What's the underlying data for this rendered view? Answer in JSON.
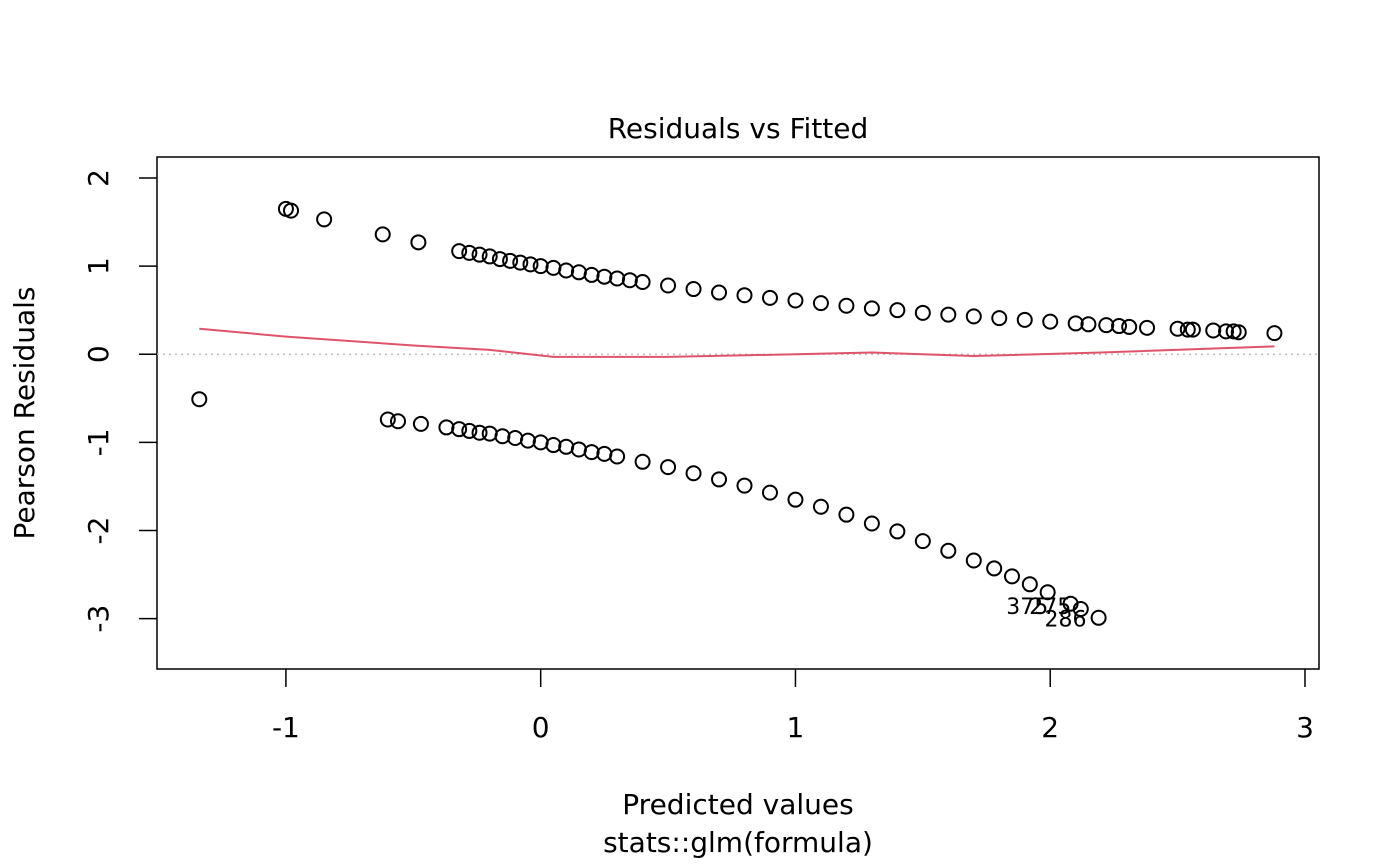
{
  "chart_data": {
    "type": "scatter",
    "title": "Residuals vs Fitted",
    "xlabel": "Predicted values",
    "subtitle": "stats::glm(formula)",
    "ylabel": "Pearson Residuals",
    "xlim": [
      -1.506,
      3.055
    ],
    "ylim": [
      -3.571,
      2.238
    ],
    "xticks": [
      -1,
      0,
      1,
      2,
      3
    ],
    "yticks": [
      -3,
      -2,
      -1,
      0,
      1,
      2
    ],
    "reference_line": {
      "value": 0,
      "color": "#bebebe"
    },
    "series": [
      {
        "type": "scatter",
        "color": "#000000",
        "x": [
          -1.0,
          -0.98,
          -0.85,
          -0.62,
          -0.48,
          -0.32,
          -0.28,
          -0.24,
          -0.2,
          -0.16,
          -0.12,
          -0.08,
          -0.04,
          0.0,
          0.05,
          0.1,
          0.15,
          0.2,
          0.25,
          0.3,
          0.35,
          0.4,
          0.5,
          0.6,
          0.7,
          0.8,
          0.9,
          1.0,
          1.1,
          1.2,
          1.3,
          1.4,
          1.5,
          1.6,
          1.7,
          1.8,
          1.9,
          2.0,
          2.1,
          2.15,
          2.22,
          2.27,
          2.31,
          2.38,
          2.5,
          2.54,
          2.56,
          2.64,
          2.69,
          2.72,
          2.74,
          2.88,
          -1.34,
          -0.6,
          -0.56,
          -0.47,
          -0.37,
          -0.32,
          -0.28,
          -0.24,
          -0.2,
          -0.15,
          -0.1,
          -0.05,
          0.0,
          0.05,
          0.1,
          0.15,
          0.2,
          0.25,
          0.3,
          0.4,
          0.5,
          0.6,
          0.7,
          0.8,
          0.9,
          1.0,
          1.1,
          1.2,
          1.3,
          1.4,
          1.5,
          1.6,
          1.7,
          1.78,
          1.85,
          1.92,
          1.99,
          2.08,
          2.12,
          2.19
        ],
        "values": [
          1.65,
          1.63,
          1.53,
          1.36,
          1.27,
          1.17,
          1.15,
          1.13,
          1.11,
          1.08,
          1.06,
          1.04,
          1.02,
          1.0,
          0.98,
          0.95,
          0.93,
          0.9,
          0.88,
          0.86,
          0.84,
          0.82,
          0.78,
          0.74,
          0.7,
          0.67,
          0.64,
          0.61,
          0.58,
          0.55,
          0.52,
          0.5,
          0.47,
          0.45,
          0.43,
          0.41,
          0.39,
          0.37,
          0.35,
          0.34,
          0.33,
          0.32,
          0.31,
          0.3,
          0.29,
          0.28,
          0.28,
          0.27,
          0.26,
          0.26,
          0.25,
          0.24,
          -0.51,
          -0.74,
          -0.76,
          -0.79,
          -0.83,
          -0.85,
          -0.87,
          -0.89,
          -0.9,
          -0.93,
          -0.95,
          -0.98,
          -1.0,
          -1.03,
          -1.05,
          -1.08,
          -1.11,
          -1.13,
          -1.16,
          -1.22,
          -1.28,
          -1.35,
          -1.42,
          -1.49,
          -1.57,
          -1.65,
          -1.73,
          -1.82,
          -1.92,
          -2.01,
          -2.12,
          -2.23,
          -2.34,
          -2.43,
          -2.52,
          -2.61,
          -2.7,
          -2.83,
          -2.89,
          -2.99
        ]
      },
      {
        "type": "line",
        "color": "#df536b",
        "x": [
          -1.34,
          -1.0,
          -0.5,
          -0.2,
          0.05,
          0.5,
          1.0,
          1.3,
          1.7,
          2.2,
          2.88
        ],
        "values": [
          0.29,
          0.2,
          0.1,
          0.05,
          -0.03,
          -0.03,
          0.0,
          0.02,
          -0.02,
          0.02,
          0.09
        ]
      }
    ],
    "annotations": [
      {
        "text": "375",
        "x": 1.91,
        "y": -2.88
      },
      {
        "text": "275",
        "x": 2.0,
        "y": -2.88
      },
      {
        "text": "286",
        "x": 2.06,
        "y": -3.02
      }
    ]
  }
}
